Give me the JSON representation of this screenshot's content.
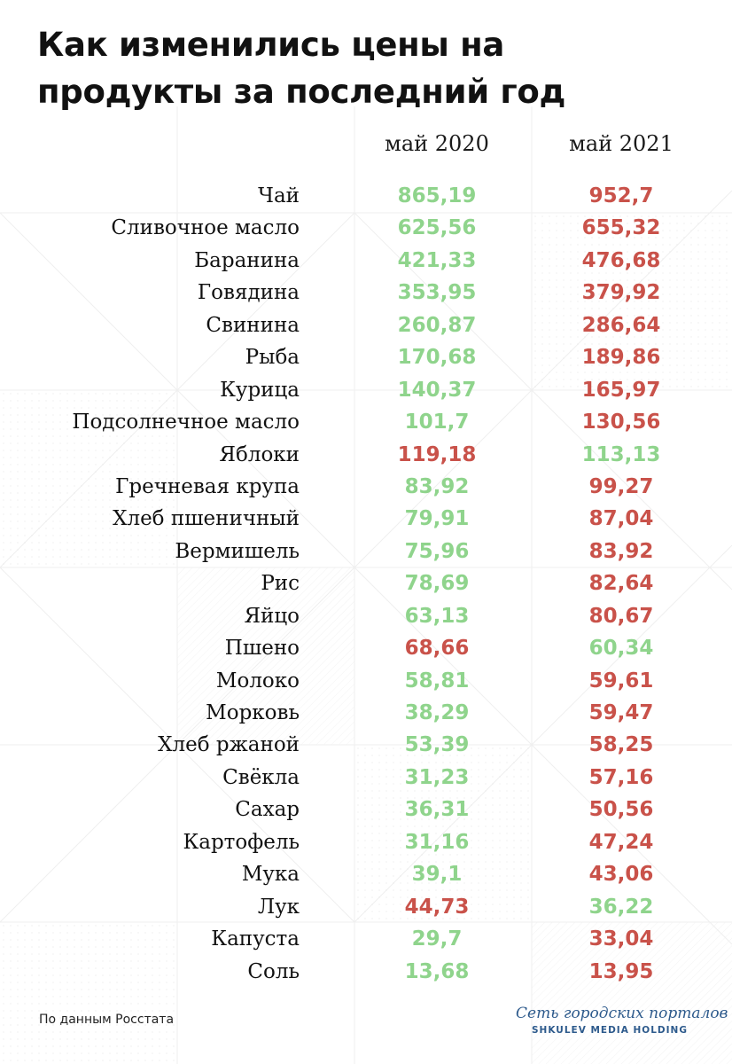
{
  "title": "Как изменились цены на продукты за последний год",
  "columns": [
    "май 2020",
    "май 2021"
  ],
  "footer": {
    "source": "По данным Росстата",
    "logo_script": "Сеть городских порталов",
    "logo_sub": "SHKULEV MEDIA HOLDING"
  },
  "colors": {
    "lower": "#8fd48c",
    "higher": "#c9524a",
    "text": "#111111",
    "brand": "#2d5a8c"
  },
  "chart_data": {
    "type": "table",
    "title": "Как изменились цены на продукты за последний год",
    "columns": [
      "май 2020",
      "май 2021"
    ],
    "rows": [
      {
        "name": "Чай",
        "v2020": "865,19",
        "v2021": "952,7",
        "c2020": "green",
        "c2021": "red"
      },
      {
        "name": "Сливочное масло",
        "v2020": "625,56",
        "v2021": "655,32",
        "c2020": "green",
        "c2021": "red"
      },
      {
        "name": "Баранина",
        "v2020": "421,33",
        "v2021": "476,68",
        "c2020": "green",
        "c2021": "red"
      },
      {
        "name": "Говядина",
        "v2020": "353,95",
        "v2021": "379,92",
        "c2020": "green",
        "c2021": "red"
      },
      {
        "name": "Свинина",
        "v2020": "260,87",
        "v2021": "286,64",
        "c2020": "green",
        "c2021": "red"
      },
      {
        "name": "Рыба",
        "v2020": "170,68",
        "v2021": "189,86",
        "c2020": "green",
        "c2021": "red"
      },
      {
        "name": "Курица",
        "v2020": "140,37",
        "v2021": "165,97",
        "c2020": "green",
        "c2021": "red"
      },
      {
        "name": "Подсолнечное масло",
        "v2020": "101,7",
        "v2021": "130,56",
        "c2020": "green",
        "c2021": "red"
      },
      {
        "name": "Яблоки",
        "v2020": "119,18",
        "v2021": "113,13",
        "c2020": "red",
        "c2021": "green"
      },
      {
        "name": "Гречневая крупа",
        "v2020": "83,92",
        "v2021": "99,27",
        "c2020": "green",
        "c2021": "red"
      },
      {
        "name": "Хлеб пшеничный",
        "v2020": "79,91",
        "v2021": "87,04",
        "c2020": "green",
        "c2021": "red"
      },
      {
        "name": "Вермишель",
        "v2020": "75,96",
        "v2021": "83,92",
        "c2020": "green",
        "c2021": "red"
      },
      {
        "name": "Рис",
        "v2020": "78,69",
        "v2021": "82,64",
        "c2020": "green",
        "c2021": "red"
      },
      {
        "name": "Яйцо",
        "v2020": "63,13",
        "v2021": "80,67",
        "c2020": "green",
        "c2021": "red"
      },
      {
        "name": "Пшено",
        "v2020": "68,66",
        "v2021": "60,34",
        "c2020": "red",
        "c2021": "green"
      },
      {
        "name": "Молоко",
        "v2020": "58,81",
        "v2021": "59,61",
        "c2020": "green",
        "c2021": "red"
      },
      {
        "name": "Морковь",
        "v2020": "38,29",
        "v2021": "59,47",
        "c2020": "green",
        "c2021": "red"
      },
      {
        "name": "Хлеб ржаной",
        "v2020": "53,39",
        "v2021": "58,25",
        "c2020": "green",
        "c2021": "red"
      },
      {
        "name": "Свёкла",
        "v2020": "31,23",
        "v2021": "57,16",
        "c2020": "green",
        "c2021": "red"
      },
      {
        "name": "Сахар",
        "v2020": "36,31",
        "v2021": "50,56",
        "c2020": "green",
        "c2021": "red"
      },
      {
        "name": "Картофель",
        "v2020": "31,16",
        "v2021": "47,24",
        "c2020": "green",
        "c2021": "red"
      },
      {
        "name": "Мука",
        "v2020": "39,1",
        "v2021": "43,06",
        "c2020": "green",
        "c2021": "red"
      },
      {
        "name": "Лук",
        "v2020": "44,73",
        "v2021": "36,22",
        "c2020": "red",
        "c2021": "green"
      },
      {
        "name": "Капуста",
        "v2020": "29,7",
        "v2021": "33,04",
        "c2020": "green",
        "c2021": "red"
      },
      {
        "name": "Соль",
        "v2020": "13,68",
        "v2021": "13,95",
        "c2020": "green",
        "c2021": "red"
      }
    ]
  }
}
